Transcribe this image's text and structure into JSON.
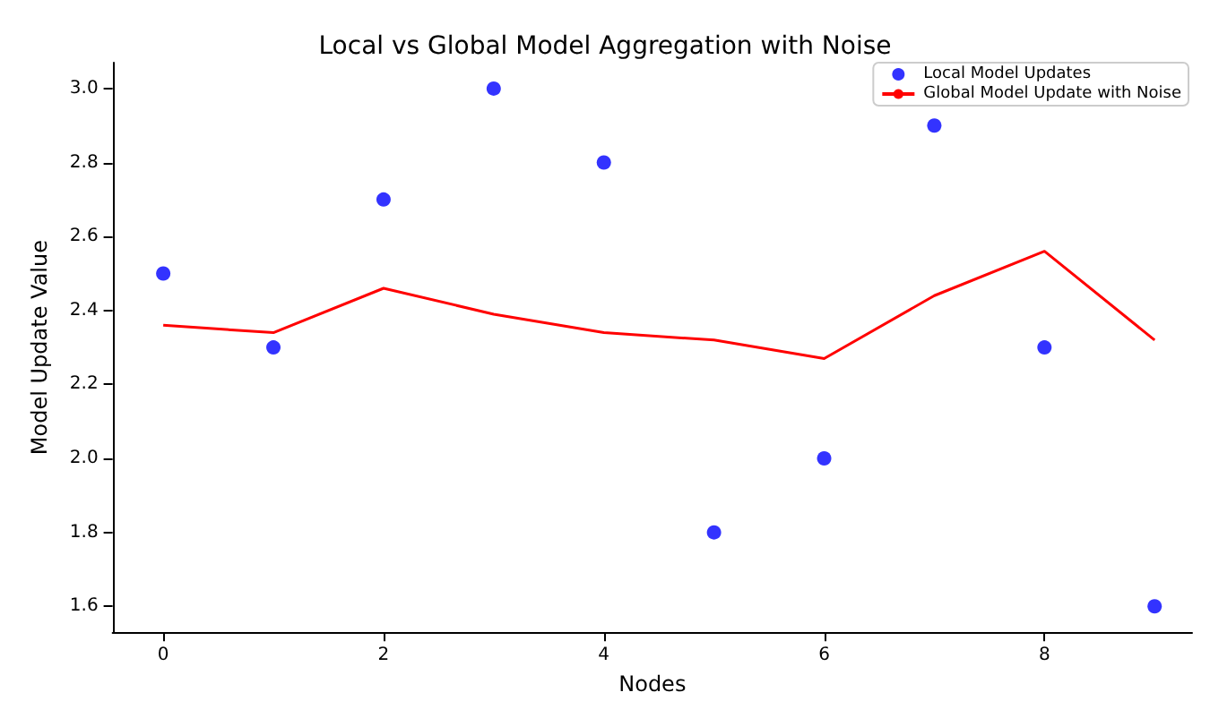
{
  "chart_data": {
    "type": "scatter",
    "title": "Local vs Global Model Aggregation with Noise",
    "xlabel": "Nodes",
    "ylabel": "Model Update Value",
    "x": [
      0,
      1,
      2,
      3,
      4,
      5,
      6,
      7,
      8,
      9
    ],
    "series": [
      {
        "name": "Local Model Updates",
        "color": "#0000ff",
        "marker": "circle",
        "values": [
          2.5,
          2.3,
          2.7,
          3.0,
          2.8,
          1.8,
          2.0,
          2.9,
          2.3,
          1.6
        ]
      },
      {
        "name": "Global Model Update with Noise",
        "type": "line",
        "color": "#ff0000",
        "marker": "none",
        "line_style": "solid",
        "values": [
          2.36,
          2.34,
          2.46,
          2.39,
          2.34,
          2.32,
          2.27,
          2.44,
          2.56,
          2.32
        ]
      }
    ],
    "xlim": [
      -0.46,
      9.34
    ],
    "xticks": [
      0,
      2,
      4,
      6,
      8
    ],
    "ylim": [
      1.53,
      3.07
    ],
    "yticks": [
      1.6,
      1.8,
      {
        "value": 2,
        "label": "2.0"
      },
      2.2,
      2.4,
      2.6,
      2.8,
      {
        "value": 3,
        "label": "3.0"
      }
    ],
    "grid": false,
    "legend": "top right"
  }
}
